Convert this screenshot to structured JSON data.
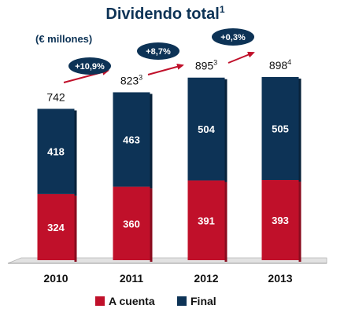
{
  "chart_data": {
    "type": "bar",
    "stacked": true,
    "title": "Dividendo total",
    "title_sup": "1",
    "unit_label": "(€ millones)",
    "categories": [
      "2010",
      "2011",
      "2012",
      "2013"
    ],
    "series": [
      {
        "name": "A cuenta",
        "color": "#c0102a",
        "values": [
          324,
          360,
          391,
          393
        ]
      },
      {
        "name": "Final",
        "color": "#0d3356",
        "values": [
          418,
          463,
          504,
          505
        ]
      }
    ],
    "totals": [
      {
        "value": "742",
        "sup": ""
      },
      {
        "value": "823",
        "sup": "3"
      },
      {
        "value": "895",
        "sup": "3"
      },
      {
        "value": "898",
        "sup": "4"
      }
    ],
    "growth_badges": [
      "+10,9%",
      "+8,7%",
      "+0,3%"
    ],
    "ylim": [
      0,
      1000
    ],
    "grid": false,
    "legend_position": "bottom-center"
  },
  "colors": {
    "title": "#0d3356",
    "text": "#111111",
    "arrow": "#c0102a",
    "badge": "#0d3356"
  }
}
